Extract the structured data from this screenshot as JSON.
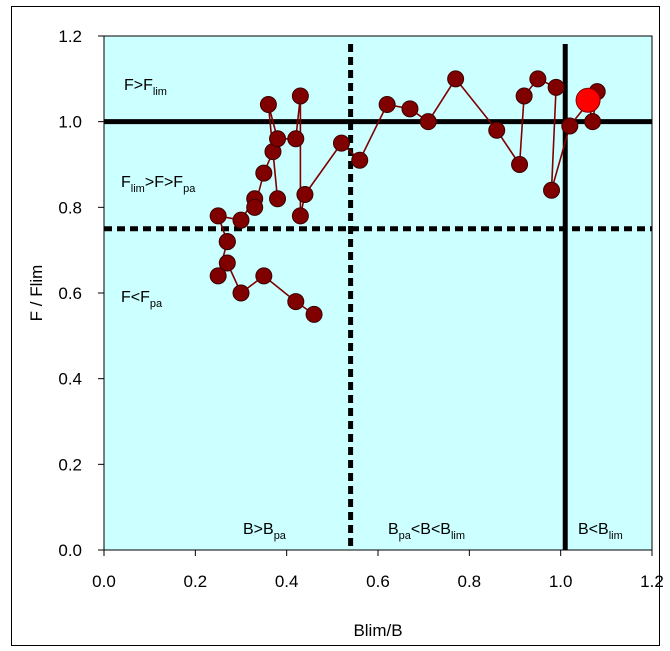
{
  "chart_data": {
    "type": "scatter",
    "xlabel": "Blim/B",
    "ylabel": "F / Flim",
    "xlim": [
      0,
      1.2
    ],
    "ylim": [
      0,
      1.2
    ],
    "xticks": [
      "0.0",
      "0.2",
      "0.4",
      "0.6",
      "0.8",
      "1.0",
      "1.2"
    ],
    "yticks": [
      "0.0",
      "0.2",
      "0.4",
      "0.6",
      "0.8",
      "1.0",
      "1.2"
    ],
    "grid": false,
    "plot_background": "#ccffff",
    "marker_color": "#800000",
    "line_color": "#800000",
    "current_point_color": "#ff0000",
    "reference_lines": {
      "f_lim": 1.0,
      "f_pa": 0.75,
      "blim_over_bpa": 0.54,
      "blim_over_blim": 1.01
    },
    "region_labels": [
      {
        "main": "F>F",
        "sub": "lim",
        "rest": ""
      },
      {
        "main": "F",
        "sub": "lim",
        "rest": ">F>F",
        "sub2": "pa"
      },
      {
        "main": "F<F",
        "sub": "pa",
        "rest": ""
      },
      {
        "main": "B>B",
        "sub": "pa",
        "rest": ""
      },
      {
        "main": "B",
        "sub": "pa",
        "rest": "<B<B",
        "sub2": "lim"
      },
      {
        "main": "B<B",
        "sub": "lim",
        "rest": ""
      }
    ],
    "series": [
      {
        "x": [
          0.46,
          0.42,
          0.35,
          0.3,
          0.27,
          0.25,
          0.27,
          0.27,
          0.25,
          0.3,
          0.33,
          0.33,
          0.35,
          0.37,
          0.38,
          0.36,
          0.38,
          0.42,
          0.43,
          0.43,
          0.44,
          0.52,
          0.56,
          0.62,
          0.67,
          0.71,
          0.77,
          0.86,
          0.91,
          0.92,
          0.95,
          0.99,
          0.98,
          1.02,
          1.08,
          1.07,
          1.06
        ],
        "y": [
          0.55,
          0.58,
          0.64,
          0.6,
          0.67,
          0.64,
          0.72,
          0.72,
          0.78,
          0.77,
          0.82,
          0.8,
          0.88,
          0.93,
          0.82,
          1.04,
          0.96,
          0.96,
          1.06,
          0.78,
          0.83,
          0.95,
          0.91,
          1.04,
          1.03,
          1.0,
          1.1,
          0.98,
          0.9,
          1.06,
          1.1,
          1.08,
          0.84,
          0.99,
          1.07,
          1.0,
          1.05
        ]
      }
    ]
  }
}
